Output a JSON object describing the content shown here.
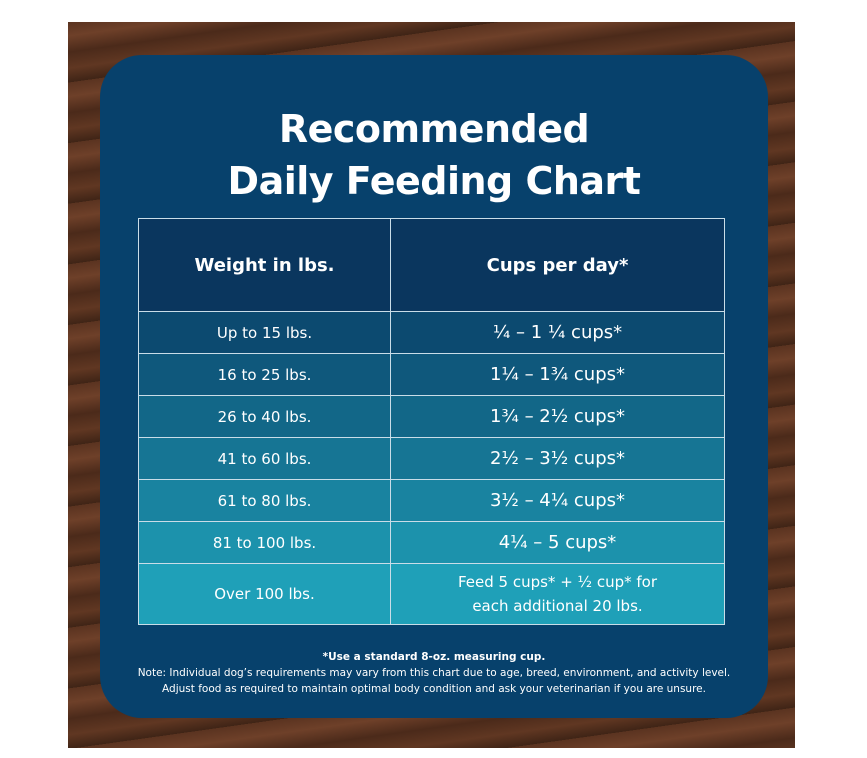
{
  "title_lines": [
    "Recommended",
    "Daily Feeding Chart"
  ],
  "table": {
    "headers": [
      "Weight in lbs.",
      "Cups per day*"
    ],
    "rows": [
      [
        "Up to 15 lbs.",
        "¼ – 1 ¼ cups*"
      ],
      [
        "16 to 25 lbs.",
        "1¼ – 1¾  cups*"
      ],
      [
        "26 to 40 lbs.",
        "1¾ – 2½ cups*"
      ],
      [
        "41 to 60 lbs.",
        "2½ – 3½ cups*"
      ],
      [
        "61 to 80 lbs.",
        "3½ – 4¼ cups*"
      ],
      [
        "81 to 100 lbs.",
        "4¼ – 5 cups*"
      ],
      [
        "Over 100 lbs.",
        [
          "Feed 5 cups* + ½ cup* for",
          "each additional 20 lbs."
        ]
      ]
    ]
  },
  "footnote": "*Use a standard 8-oz. measuring cup.",
  "notes": [
    "Note: Individual dog’s requirements may vary from this chart due to age, breed, environment, and activity level.",
    "Adjust food as required to maintain optimal body condition and ask your veterinarian if you are unsure."
  ]
}
